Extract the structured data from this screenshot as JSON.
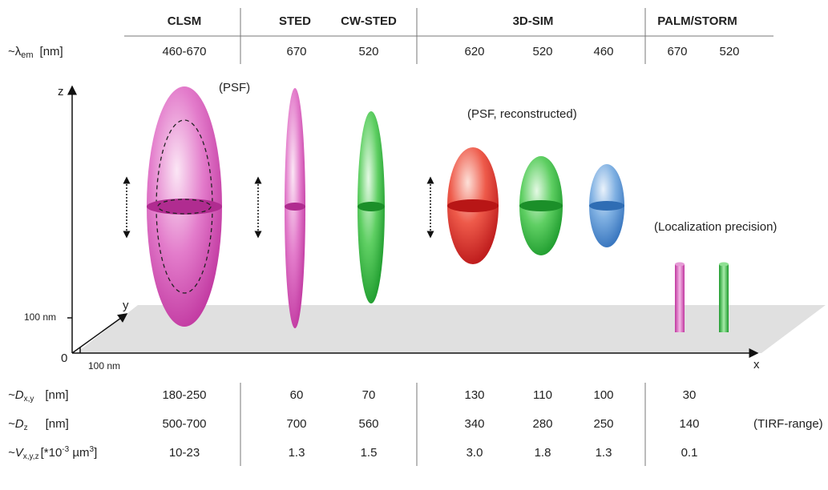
{
  "header": {
    "columns": [
      "CLSM",
      "STED",
      "CW-STED",
      "3D-SIM",
      "PALM/STORM"
    ]
  },
  "emission_row": {
    "label": "~λ",
    "sub": "em",
    "unit": "[nm]",
    "values": [
      "460-670",
      "670",
      "520",
      "620",
      "520",
      "460",
      "670",
      "520"
    ]
  },
  "axes": {
    "z": "z",
    "y": "y",
    "x": "x",
    "z_tick": "100 nm",
    "origin": "0",
    "x_tick": "100 nm"
  },
  "annotations": {
    "psf": "(PSF)",
    "psf_reconstructed": "(PSF, reconstructed)",
    "localization": "(Localization precision)"
  },
  "table": {
    "rows": [
      {
        "label": "~D",
        "sub": "x,y",
        "unit": "[nm]",
        "values": [
          "180-250",
          "60",
          "70",
          "130",
          "110",
          "100",
          "30"
        ]
      },
      {
        "label": "~D",
        "sub": "z",
        "unit": "[nm]",
        "values": [
          "500-700",
          "700",
          "560",
          "340",
          "280",
          "250",
          "140"
        ],
        "note": "(TIRF-range)"
      },
      {
        "label": "~V",
        "sub": "x,y,z",
        "unit": "[*10",
        "unit_sup": "-3",
        "unit2": " µm",
        "unit2_sup": "3",
        "unit_end": "]"
      }
    ]
  },
  "table_values_volume": [
    "10-23",
    "1.3",
    "1.5",
    "3.0",
    "1.8",
    "1.3",
    "0.1"
  ]
}
